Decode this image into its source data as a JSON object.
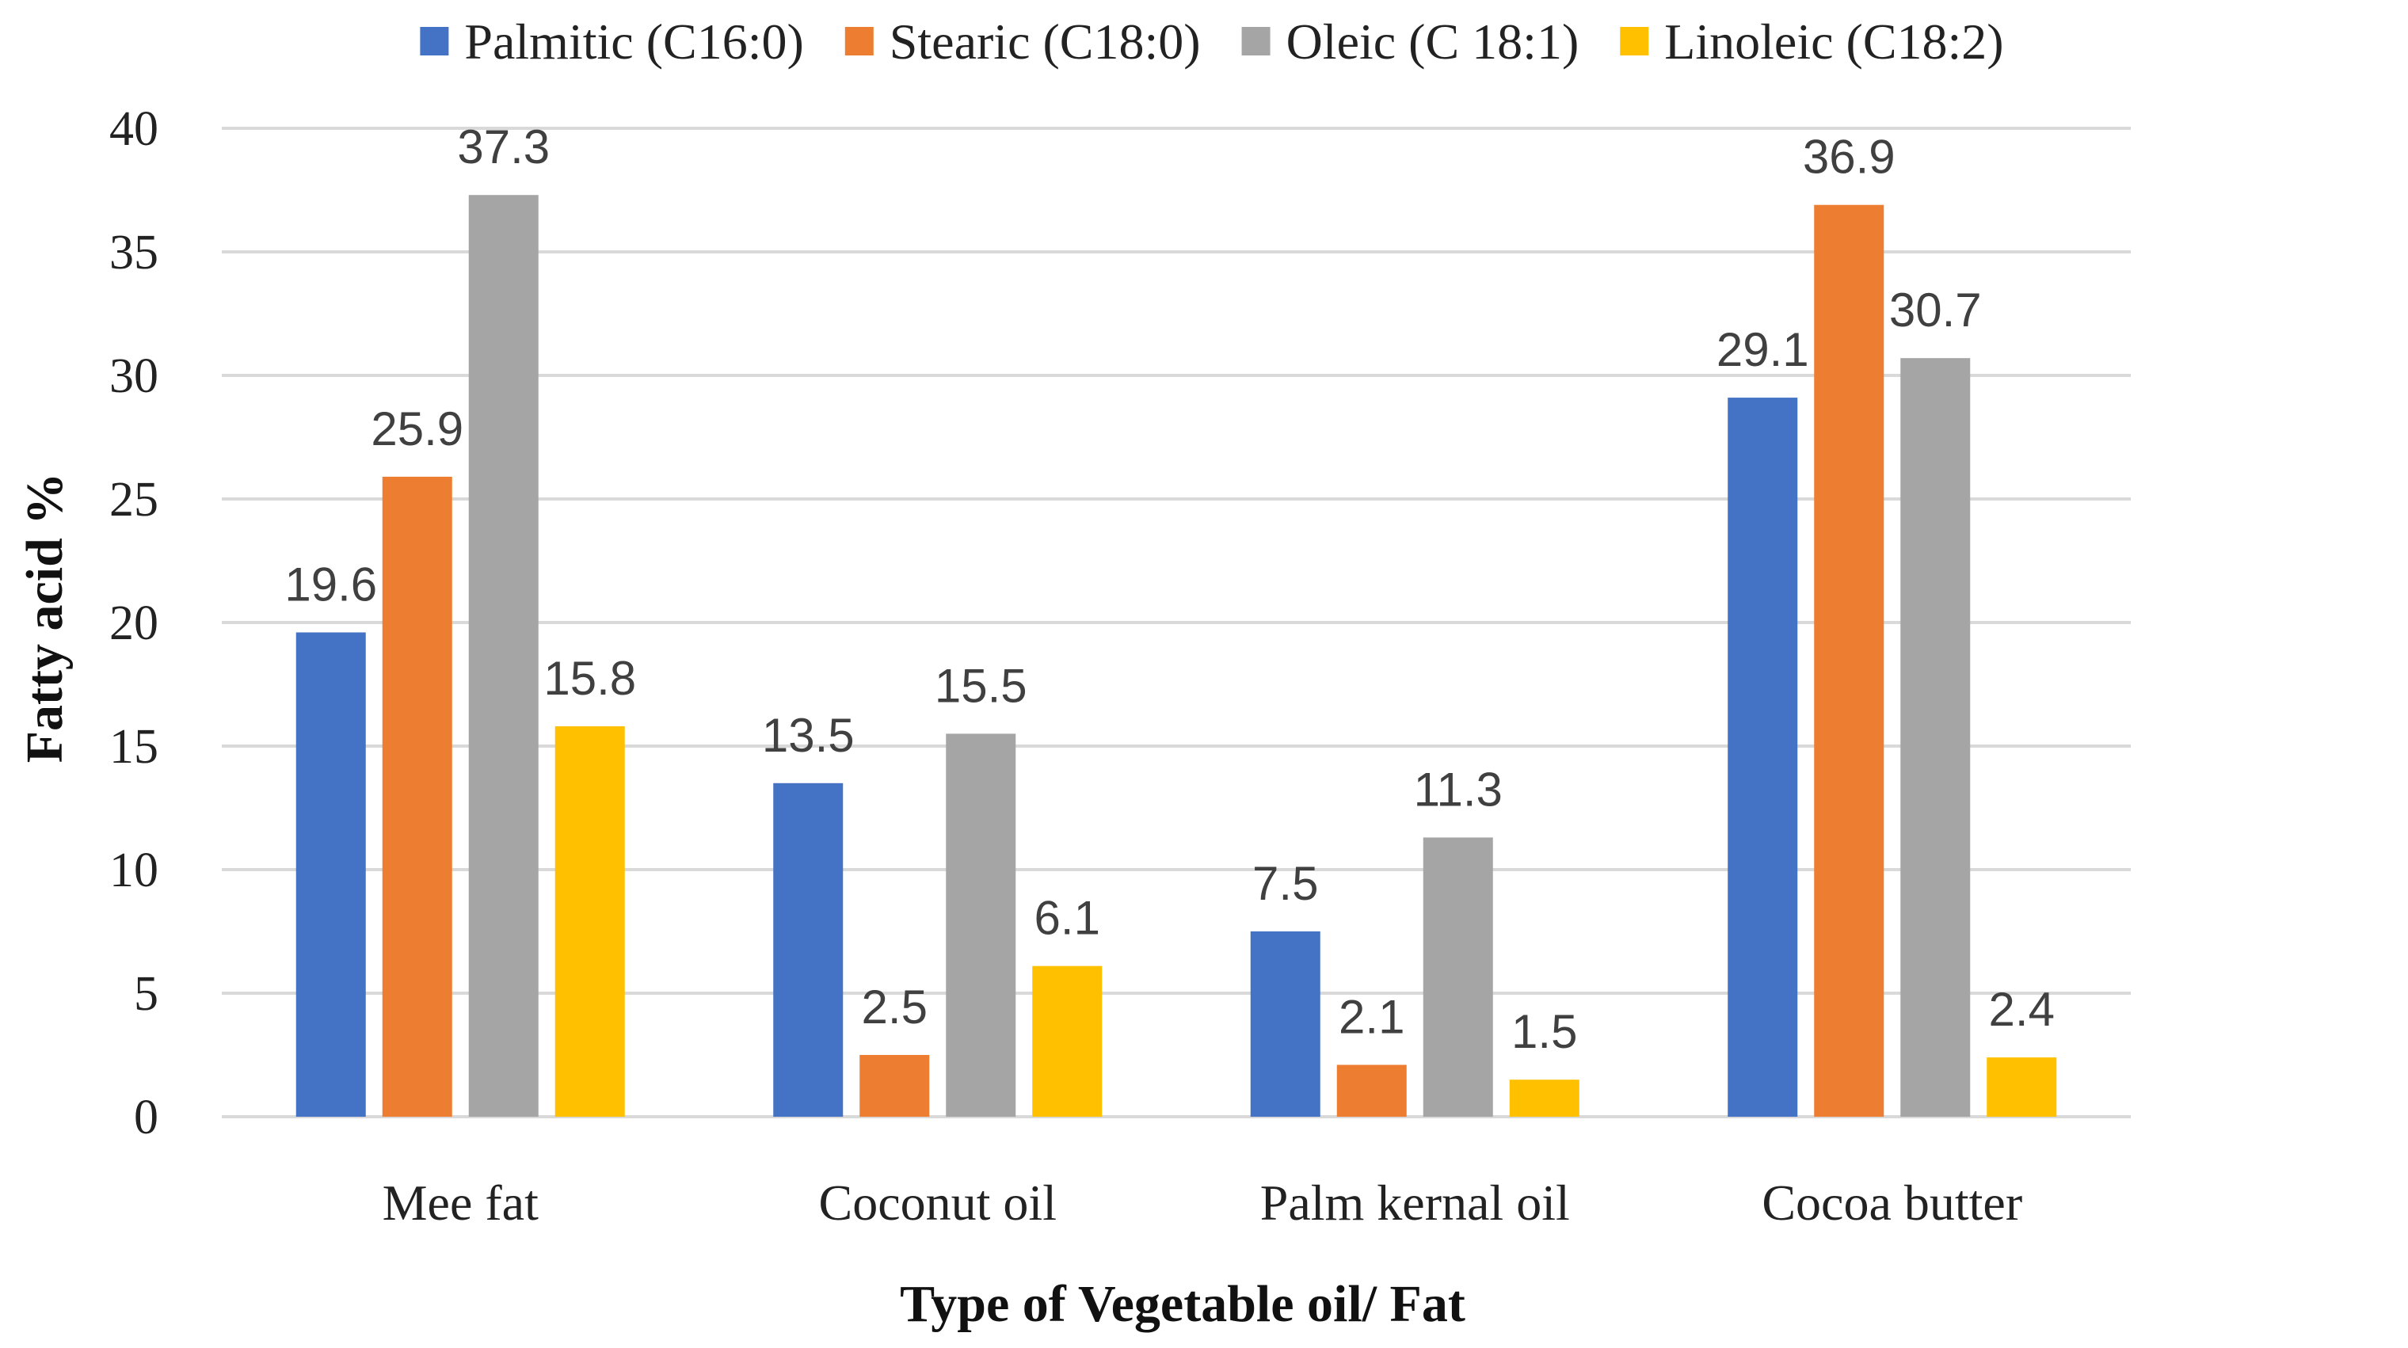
{
  "chart_data": {
    "type": "bar",
    "title": "",
    "xlabel": "Type of Vegetable oil/ Fat",
    "ylabel": "Fatty acid %",
    "ylim": [
      0,
      40
    ],
    "yticks": [
      0,
      5,
      10,
      15,
      20,
      25,
      30,
      35,
      40
    ],
    "grid": true,
    "legend_position": "top",
    "categories": [
      "Mee fat",
      "Coconut oil",
      "Palm kernal oil",
      "Cocoa butter"
    ],
    "series": [
      {
        "name": "Palmitic (C16:0)",
        "color": "#4472C4",
        "values": [
          19.6,
          13.5,
          7.5,
          29.1
        ]
      },
      {
        "name": "Stearic (C18:0)",
        "color": "#ED7D31",
        "values": [
          25.9,
          2.5,
          2.1,
          36.9
        ]
      },
      {
        "name": "Oleic (C 18:1)",
        "color": "#A5A5A5",
        "values": [
          37.3,
          15.5,
          11.3,
          30.7
        ]
      },
      {
        "name": "Linoleic (C18:2)",
        "color": "#FFC000",
        "values": [
          15.8,
          6.1,
          1.5,
          2.4
        ]
      }
    ]
  }
}
